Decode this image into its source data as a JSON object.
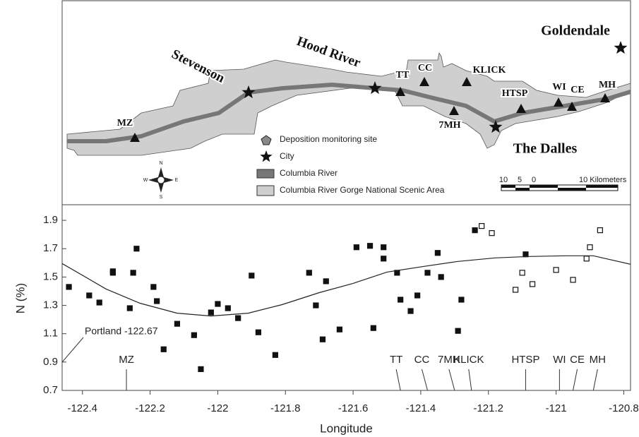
{
  "map": {
    "cities": [
      "Goldendale",
      "Stevenson",
      "Hood River",
      "The Dalles"
    ],
    "sites": [
      "MZ",
      "TT",
      "CC",
      "KLICK",
      "7MH",
      "HTSP",
      "WI",
      "CE",
      "MH"
    ],
    "legend": [
      "Deposition monitoring site",
      "City",
      "Columbia River",
      "Columbia River Gorge National Scenic Area"
    ],
    "scale": [
      "10",
      "5",
      "0",
      "10 Kilometers"
    ],
    "compass": [
      "N",
      "W",
      "E",
      "S"
    ]
  },
  "chart_data": {
    "type": "scatter",
    "xlabel": "Longitude",
    "ylabel": "N (%)",
    "xlim": [
      -122.46,
      -120.78
    ],
    "ylim": [
      0.7,
      2.0
    ],
    "xticks": [
      -122.4,
      -122.2,
      -122,
      -121.8,
      -121.6,
      -121.4,
      -121.2,
      -121,
      -120.8
    ],
    "yticks": [
      0.7,
      0.9,
      1.1,
      1.3,
      1.5,
      1.7,
      1.9
    ],
    "series": [
      {
        "type": "scatter",
        "color": "#111111",
        "filled": true,
        "x": [
          -122.44,
          -122.38,
          -122.35,
          -122.31,
          -122.31,
          -122.26,
          -122.25,
          -122.24,
          -122.19,
          -122.18,
          -122.16,
          -122.12,
          -122.07,
          -122.05,
          -122.02,
          -122.0,
          -121.97,
          -121.94,
          -121.9,
          -121.88,
          -121.83,
          -121.73,
          -121.71,
          -121.69,
          -121.68,
          -121.64,
          -121.59,
          -121.55,
          -121.54,
          -121.51,
          -121.51,
          -121.47,
          -121.46,
          -121.43,
          -121.41,
          -121.38,
          -121.35,
          -121.34,
          -121.29,
          -121.28,
          -121.24,
          -121.09
        ],
        "values": [
          1.43,
          1.37,
          1.32,
          1.53,
          1.54,
          1.28,
          1.53,
          1.7,
          1.43,
          1.33,
          0.99,
          1.17,
          1.09,
          0.85,
          1.25,
          1.31,
          1.28,
          1.21,
          1.51,
          1.11,
          0.95,
          1.53,
          1.3,
          1.06,
          1.47,
          1.13,
          1.71,
          1.72,
          1.14,
          1.71,
          1.63,
          1.53,
          1.34,
          1.26,
          1.37,
          1.53,
          1.67,
          1.5,
          1.12,
          1.34,
          1.83,
          1.66
        ]
      },
      {
        "type": "scatter",
        "color": "#111111",
        "filled": false,
        "x": [
          -121.22,
          -121.19,
          -121.12,
          -121.1,
          -121.07,
          -121.0,
          -120.95,
          -120.91,
          -120.9,
          -120.87
        ],
        "values": [
          1.86,
          1.81,
          1.41,
          1.53,
          1.45,
          1.55,
          1.48,
          1.63,
          1.71,
          1.83
        ]
      },
      {
        "type": "line",
        "color": "#222222",
        "x": [
          -122.46,
          -122.33,
          -122.23,
          -122.12,
          -122.02,
          -121.91,
          -121.81,
          -121.7,
          -121.6,
          -121.5,
          -121.39,
          -121.29,
          -121.18,
          -121.08,
          -120.97,
          -120.89,
          -120.78
        ],
        "values": [
          1.595,
          1.415,
          1.315,
          1.245,
          1.225,
          1.245,
          1.305,
          1.39,
          1.455,
          1.535,
          1.575,
          1.61,
          1.635,
          1.645,
          1.65,
          1.65,
          1.59
        ]
      }
    ],
    "annotation": "Portland -122.67",
    "sites": [
      {
        "label": "MZ",
        "x": -122.27
      },
      {
        "label": "TT",
        "x": -121.46
      },
      {
        "label": "CC",
        "x": -121.38
      },
      {
        "label": "7MH",
        "x": -121.3
      },
      {
        "label": "KLICK",
        "x": -121.25
      },
      {
        "label": "HTSP",
        "x": -121.09
      },
      {
        "label": "WI",
        "x": -120.99
      },
      {
        "label": "CE",
        "x": -120.95
      },
      {
        "label": "MH",
        "x": -120.89
      }
    ]
  }
}
